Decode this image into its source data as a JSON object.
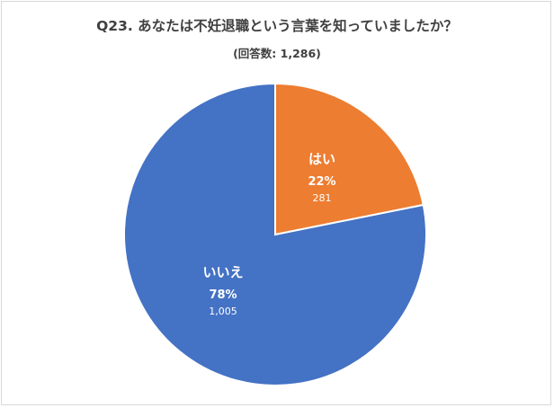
{
  "chart_data": {
    "type": "pie",
    "title": "Q23. あなたは不妊退職という言葉を知っていましたか？",
    "subtitle": "(回答数: 1,286)",
    "slices": [
      {
        "label": "はい",
        "percent": "22%",
        "count": "281",
        "value": 281,
        "color": "#ed7d31"
      },
      {
        "label": "いいえ",
        "percent": "78%",
        "count": "1,005",
        "value": 1005,
        "color": "#4472c4"
      }
    ]
  }
}
